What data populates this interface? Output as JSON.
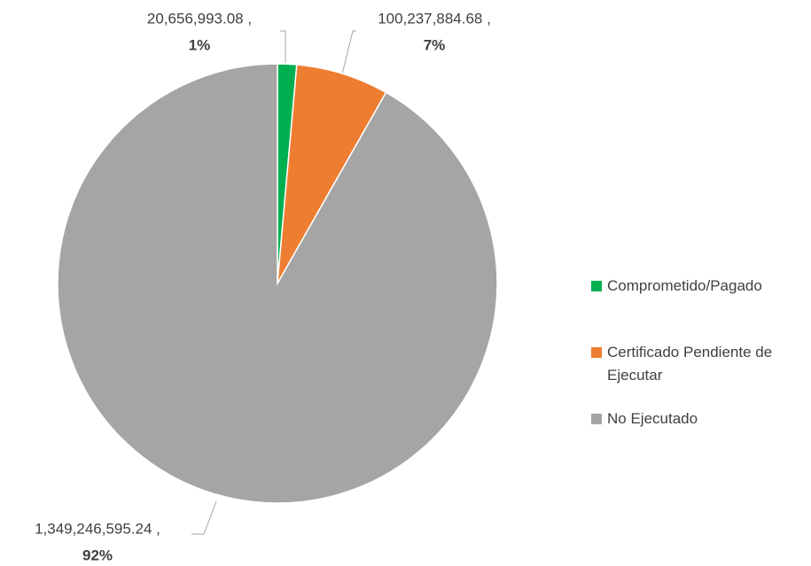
{
  "chart_data": {
    "type": "pie",
    "categories": [
      "Comprometido/Pagado",
      "Certificado Pendiente de Ejecutar",
      "No Ejecutado"
    ],
    "values": [
      20656993.08,
      100237884.68,
      1349246595.24
    ],
    "value_labels": [
      "20,656,993.08 ,",
      "100,237,884.68 ,",
      "1,349,246,595.24 ,"
    ],
    "percents": [
      1,
      7,
      92
    ],
    "percent_labels": [
      "1%",
      "7%",
      "92%"
    ],
    "colors": [
      "#00b050",
      "#ed7d31",
      "#a5a5a5"
    ],
    "legend": "right"
  }
}
